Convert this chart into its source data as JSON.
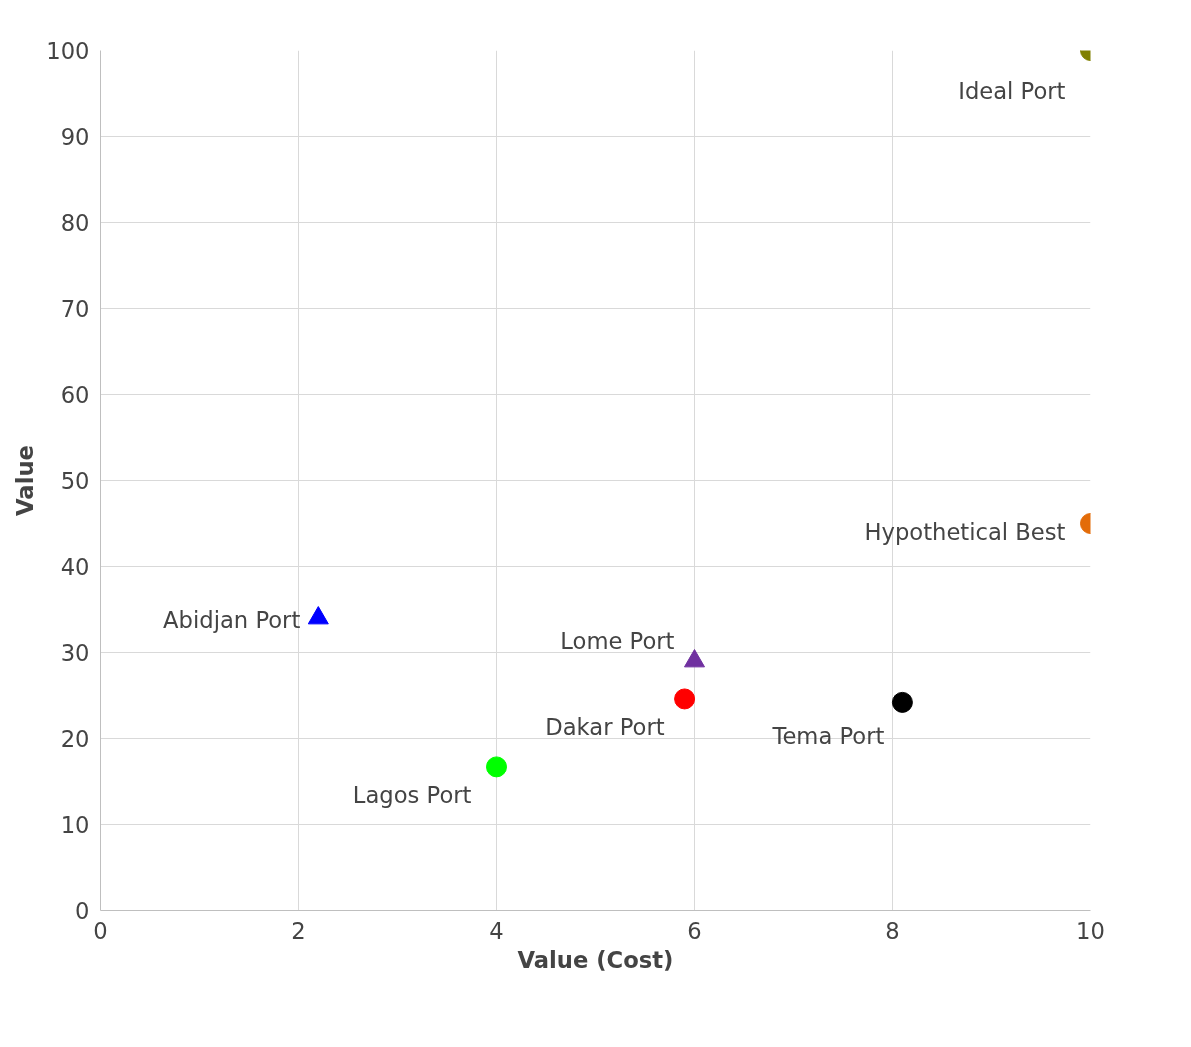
{
  "chart_data": {
    "type": "scatter",
    "xlabel": "Value (Cost)",
    "ylabel": "Value",
    "xlim": [
      0,
      10
    ],
    "xticks": [
      0,
      2,
      4,
      6,
      8,
      10
    ],
    "ylim": [
      0,
      100
    ],
    "yticks": [
      0,
      10,
      20,
      30,
      40,
      50,
      60,
      70,
      80,
      90,
      100
    ],
    "grid": true,
    "legend": false,
    "series": [
      {
        "name": "Ideal Port",
        "color": "#808000",
        "marker": "circle",
        "x": [
          10
        ],
        "values": [
          100
        ]
      },
      {
        "name": "Hypothetical Best",
        "color": "#e36c09",
        "marker": "circle",
        "x": [
          10
        ],
        "values": [
          45
        ]
      },
      {
        "name": "Abidjan Port",
        "color": "#0000ff",
        "marker": "triangle",
        "x": [
          2.2
        ],
        "values": [
          34
        ]
      },
      {
        "name": "Lome Port",
        "color": "#7030a0",
        "marker": "triangle",
        "x": [
          6
        ],
        "values": [
          29
        ]
      },
      {
        "name": "Dakar Port",
        "color": "#ff0000",
        "marker": "circle",
        "x": [
          5.9
        ],
        "values": [
          24.6
        ]
      },
      {
        "name": "Tema Port",
        "color": "#000000",
        "marker": "circle",
        "x": [
          8.1
        ],
        "values": [
          24.2
        ]
      },
      {
        "name": "Lagos Port",
        "color": "#00ff00",
        "marker": "circle",
        "x": [
          4
        ],
        "values": [
          16.7
        ]
      }
    ]
  }
}
